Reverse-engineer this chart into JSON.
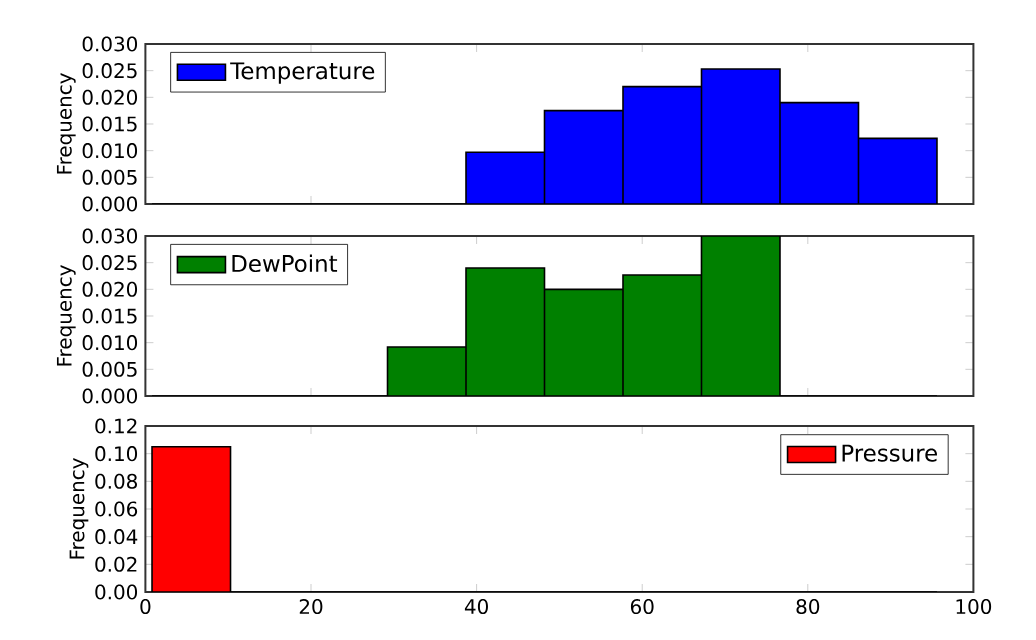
{
  "chart_data": [
    {
      "type": "histogram",
      "ylabel": "Frequency",
      "bins": [
        0.8,
        10.28,
        19.76,
        29.24,
        38.72,
        48.2,
        57.68,
        67.16,
        76.64,
        86.12,
        95.6
      ],
      "series": [
        {
          "name": "Temperature",
          "color": "#0000ff",
          "values": [
            0,
            0,
            0,
            0,
            0.0097,
            0.0175,
            0.022,
            0.0253,
            0.019,
            0.0123
          ]
        }
      ],
      "xlim": [
        0,
        100
      ],
      "xticks": [
        0,
        20,
        40,
        60,
        80,
        100
      ],
      "ylim": [
        0,
        0.03
      ],
      "yticks": [
        {
          "value": 0,
          "label": "0.000"
        },
        {
          "value": 0.005,
          "label": "0.005"
        },
        {
          "value": 0.01,
          "label": "0.010"
        },
        {
          "value": 0.015,
          "label": "0.015"
        },
        {
          "value": 0.02,
          "label": "0.020"
        },
        {
          "value": 0.025,
          "label": "0.025"
        },
        {
          "value": 0.03,
          "label": "0.030"
        }
      ],
      "tick_labels": "y",
      "legend": "top left"
    },
    {
      "type": "histogram",
      "ylabel": "Frequency",
      "bins": [
        0.8,
        10.28,
        19.76,
        29.24,
        38.72,
        48.2,
        57.68,
        67.16,
        76.64,
        86.12,
        95.6
      ],
      "series": [
        {
          "name": "DewPoint",
          "color": "#008000",
          "values": [
            0,
            0,
            0,
            0.0092,
            0.024,
            0.02,
            0.0227,
            0.03,
            0,
            0
          ]
        }
      ],
      "xlim": [
        0,
        100
      ],
      "xticks": [
        0,
        20,
        40,
        60,
        80,
        100
      ],
      "ylim": [
        0,
        0.03
      ],
      "yticks": [
        {
          "value": 0,
          "label": "0.000"
        },
        {
          "value": 0.005,
          "label": "0.005"
        },
        {
          "value": 0.01,
          "label": "0.010"
        },
        {
          "value": 0.015,
          "label": "0.015"
        },
        {
          "value": 0.02,
          "label": "0.020"
        },
        {
          "value": 0.025,
          "label": "0.025"
        },
        {
          "value": 0.03,
          "label": "0.030"
        }
      ],
      "tick_labels": "y",
      "legend": "top left"
    },
    {
      "type": "histogram",
      "ylabel": "Frequency",
      "bins": [
        0.8,
        10.28,
        19.76,
        29.24,
        38.72,
        48.2,
        57.68,
        67.16,
        76.64,
        86.12,
        95.6
      ],
      "series": [
        {
          "name": "Pressure",
          "color": "#ff0000",
          "values": [
            0.105,
            0,
            0,
            0,
            0,
            0,
            0,
            0,
            0,
            0
          ]
        }
      ],
      "xlim": [
        0,
        100
      ],
      "xticks": [
        0,
        20,
        40,
        60,
        80,
        100
      ],
      "ylim": [
        0,
        0.12
      ],
      "yticks": [
        {
          "value": 0,
          "label": "0.00"
        },
        {
          "value": 0.02,
          "label": "0.02"
        },
        {
          "value": 0.04,
          "label": "0.04"
        },
        {
          "value": 0.06,
          "label": "0.06"
        },
        {
          "value": 0.08,
          "label": "0.08"
        },
        {
          "value": 0.1,
          "label": "0.10"
        },
        {
          "value": 0.12,
          "label": "0.12"
        }
      ],
      "legend": "top right"
    }
  ]
}
